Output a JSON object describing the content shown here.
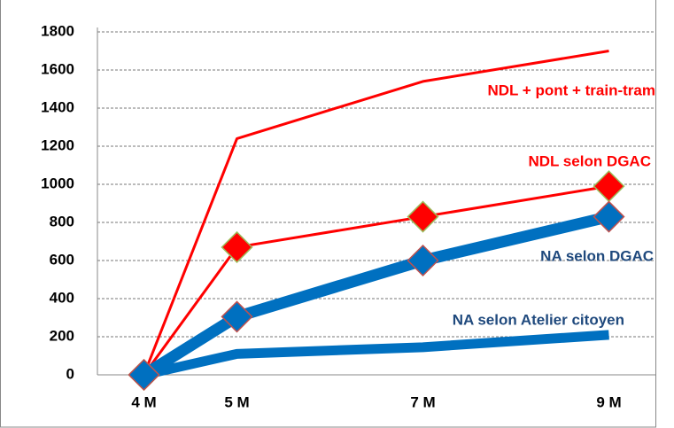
{
  "chart_data": {
    "type": "line",
    "x": [
      {
        "value": 4,
        "label": "4 M"
      },
      {
        "value": 5,
        "label": "5 M"
      },
      {
        "value": 7,
        "label": "7 M"
      },
      {
        "value": 9,
        "label": "9 M"
      }
    ],
    "xlim": [
      3.5,
      9.5
    ],
    "ylim": [
      0,
      1800
    ],
    "yticks": [
      0,
      200,
      400,
      600,
      800,
      1000,
      1200,
      1400,
      1600,
      1800
    ],
    "grid": true,
    "series": [
      {
        "name": "NDL + pont + train-tram",
        "color": "#ff0000",
        "values": [
          0,
          1240,
          1540,
          1700
        ]
      },
      {
        "name": "NDL selon DGAC",
        "color": "#ff0000",
        "marker": "diamond",
        "values": [
          0,
          670,
          830,
          990
        ]
      },
      {
        "name": "NA selon DGAC",
        "color": "#0070c0",
        "marker": "diamond",
        "values": [
          0,
          305,
          600,
          830
        ]
      },
      {
        "name": "NA selon Atelier citoyen",
        "color": "#0070c0",
        "values": [
          0,
          110,
          145,
          210
        ]
      }
    ]
  }
}
